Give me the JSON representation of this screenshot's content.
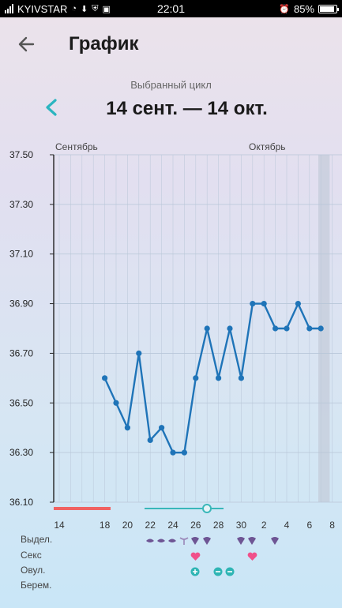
{
  "status_bar": {
    "carrier": "KYIVSTAR",
    "time": "22:01",
    "battery": "85%",
    "battery_level": 0.85
  },
  "header": {
    "title": "График",
    "back_icon": "arrow-left-icon"
  },
  "cycle": {
    "label": "Выбранный цикл",
    "range": "14 сент. — 14 окт.",
    "prev_icon": "chevron-left-icon"
  },
  "colors": {
    "line": "#1f74b8",
    "period_bar": "#f06262",
    "fertile_bar": "#3ab7b9",
    "grid": "#b8c6d8",
    "axis": "#222222",
    "highlight_col": "#c3cbd9",
    "purple": "#6e5594",
    "heart": "#f0508a",
    "teal": "#2fb5b4"
  },
  "chart_data": {
    "type": "line",
    "months": [
      "Сентябрь",
      "Октябрь"
    ],
    "x_tick_labels": [
      "14",
      "18",
      "20",
      "22",
      "24",
      "26",
      "28",
      "30",
      "2",
      "4",
      "6",
      "8"
    ],
    "y_tick_labels": [
      "37.50",
      "37.30",
      "37.10",
      "36.90",
      "36.70",
      "36.50",
      "36.30",
      "36.10"
    ],
    "ylim": [
      36.1,
      37.5
    ],
    "x_days": [
      "18 сент.",
      "19 сент.",
      "20 сент.",
      "21 сент.",
      "22 сент.",
      "23 сент.",
      "24 сент.",
      "25 сент.",
      "26 сент.",
      "27 сент.",
      "28 сент.",
      "29 сент.",
      "30 сент.",
      "1 окт.",
      "2 окт.",
      "3 окт.",
      "4 окт.",
      "5 окт.",
      "6 окт.",
      "7 окт."
    ],
    "series": [
      {
        "values": [
          36.6,
          36.5,
          36.4,
          36.7,
          36.35,
          36.4,
          36.3,
          36.3,
          36.6,
          36.8,
          36.6,
          36.8,
          36.6,
          36.9,
          36.9,
          36.8,
          36.8,
          36.9,
          36.8,
          36.8
        ]
      }
    ],
    "grid": true
  },
  "legend": {
    "rows": [
      {
        "label": "Выдел."
      },
      {
        "label": "Секс"
      },
      {
        "label": "Овул."
      },
      {
        "label": "Берем."
      }
    ]
  }
}
